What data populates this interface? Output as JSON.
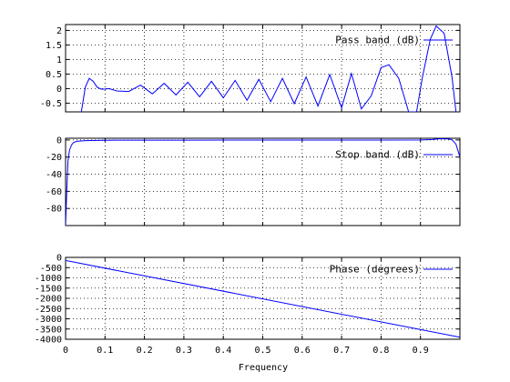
{
  "chart_data": {
    "type": "line",
    "xlabel": "Frequency",
    "xlim": [
      0,
      1
    ],
    "x_ticks": [
      0,
      0.1,
      0.2,
      0.3,
      0.4,
      0.5,
      0.6,
      0.7,
      0.8,
      0.9
    ],
    "x_tick_labels": [
      "0",
      "0.1",
      "0.2",
      "0.3",
      "0.4",
      "0.5",
      "0.6",
      "0.7",
      "0.8",
      "0.9"
    ],
    "grid": true,
    "line_color": "#0000ff",
    "legend_position": "top-right",
    "panels": [
      {
        "name": "pass-band",
        "series": [
          {
            "name": "Pass band (dB)"
          }
        ],
        "ylim": [
          -0.8,
          2.2
        ],
        "y_ticks": [
          -0.5,
          0,
          0.5,
          1,
          1.5,
          2
        ],
        "y_tick_labels": [
          "-0.5",
          "0",
          "0.5",
          "1",
          "1.5",
          "2"
        ],
        "x": [
          0.04,
          0.05,
          0.06,
          0.07,
          0.08,
          0.09,
          0.1,
          0.11,
          0.13,
          0.16,
          0.19,
          0.22,
          0.25,
          0.28,
          0.31,
          0.34,
          0.37,
          0.4,
          0.43,
          0.46,
          0.49,
          0.52,
          0.55,
          0.58,
          0.61,
          0.64,
          0.67,
          0.7,
          0.725,
          0.75,
          0.775,
          0.8,
          0.82,
          0.845,
          0.87,
          0.89,
          0.905,
          0.925,
          0.94,
          0.96,
          0.98,
          0.99
        ],
        "y": [
          -0.8,
          0.05,
          0.35,
          0.25,
          0.05,
          -0.02,
          -0.02,
          0.0,
          -0.08,
          -0.1,
          0.12,
          -0.18,
          0.18,
          -0.22,
          0.22,
          -0.28,
          0.25,
          -0.32,
          0.28,
          -0.4,
          0.32,
          -0.45,
          0.35,
          -0.52,
          0.4,
          -0.6,
          0.48,
          -0.66,
          0.52,
          -0.7,
          -0.25,
          0.72,
          0.82,
          0.35,
          -0.8,
          -0.8,
          0.4,
          1.7,
          2.15,
          1.9,
          0.4,
          -0.8
        ]
      },
      {
        "name": "stop-band",
        "series": [
          {
            "name": "Stop band (dB)"
          }
        ],
        "ylim": [
          -100,
          2
        ],
        "y_ticks": [
          -80,
          -60,
          -40,
          -20,
          0
        ],
        "y_tick_labels": [
          "-80",
          "-60",
          "-40",
          "-20",
          "0"
        ],
        "x": [
          0.0,
          0.003,
          0.006,
          0.01,
          0.015,
          0.02,
          0.03,
          0.05,
          0.1,
          0.2,
          0.3,
          0.4,
          0.5,
          0.6,
          0.7,
          0.8,
          0.9,
          0.93,
          0.95,
          0.97,
          0.98,
          0.99,
          1.0
        ],
        "y": [
          -100,
          -60,
          -25,
          -12,
          -6,
          -3,
          -1.5,
          -0.8,
          -0.3,
          -0.2,
          -0.2,
          -0.15,
          -0.15,
          -0.1,
          -0.1,
          -0.1,
          0.0,
          0.5,
          1.5,
          1.2,
          0.3,
          -5,
          -20
        ]
      },
      {
        "name": "phase",
        "series": [
          {
            "name": "Phase (degrees)"
          }
        ],
        "ylim": [
          -4000,
          0
        ],
        "y_ticks": [
          0,
          -500,
          -1000,
          -1500,
          -2000,
          -2500,
          -3000,
          -3500,
          -4000
        ],
        "y_tick_labels": [
          "0",
          "-500",
          "-1000",
          "-1500",
          "-2000",
          "-2500",
          "-3000",
          "-3500",
          "-4000"
        ],
        "x": [
          0,
          1
        ],
        "y": [
          -150,
          -3900
        ]
      }
    ]
  }
}
